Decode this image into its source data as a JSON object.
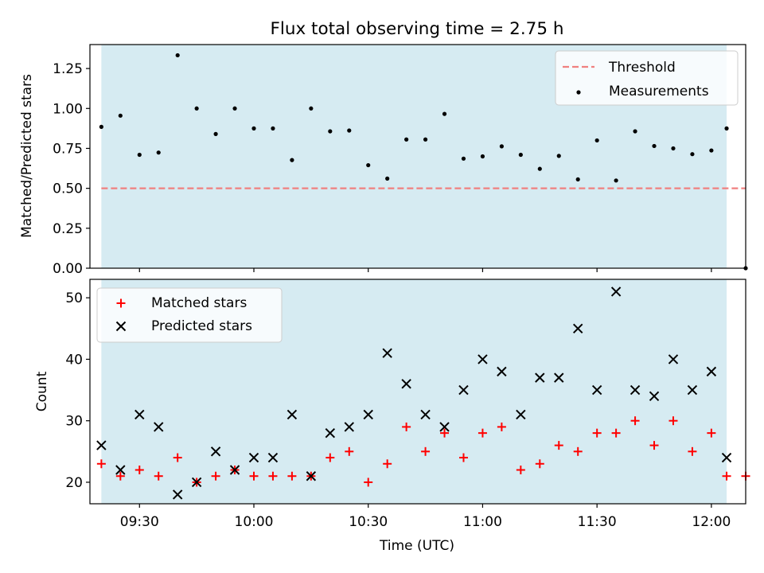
{
  "chart_data": [
    {
      "type": "scatter",
      "title": "Flux total observing time = 2.75 h",
      "xlabel": "",
      "ylabel": "Matched/Predicted stars",
      "xlim": [
        "09:17",
        "12:09"
      ],
      "ylim": [
        0,
        1.4
      ],
      "yticks": [
        0,
        0.25,
        0.5,
        0.75,
        1.0,
        1.25
      ],
      "ytick_labels": [
        "0.00",
        "0.25",
        "0.50",
        "0.75",
        "1.00",
        "1.25"
      ],
      "shaded_interval": [
        "09:20",
        "12:04"
      ],
      "legend_position": "upper right",
      "threshold": {
        "name": "Threshold",
        "value": 0.5,
        "color": "#f08080",
        "style": "dashed",
        "x_range": [
          "09:20",
          "12:09"
        ]
      },
      "series": [
        {
          "name": "Measurements",
          "color": "#000000",
          "marker": "dot",
          "times": [
            "09:20",
            "09:25",
            "09:30",
            "09:35",
            "09:40",
            "09:45",
            "09:50",
            "09:55",
            "10:00",
            "10:05",
            "10:10",
            "10:15",
            "10:20",
            "10:25",
            "10:30",
            "10:35",
            "10:40",
            "10:45",
            "10:50",
            "10:55",
            "11:00",
            "11:05",
            "11:10",
            "11:15",
            "11:20",
            "11:25",
            "11:30",
            "11:35",
            "11:40",
            "11:45",
            "11:50",
            "11:55",
            "12:00",
            "12:04",
            "12:09"
          ],
          "values": [
            0.885,
            0.955,
            0.71,
            0.724,
            1.333,
            1.0,
            0.84,
            1.0,
            0.875,
            0.875,
            0.677,
            1.0,
            0.857,
            0.862,
            0.645,
            0.561,
            0.806,
            0.806,
            0.966,
            0.686,
            0.7,
            0.763,
            0.71,
            0.622,
            0.703,
            0.556,
            0.8,
            0.549,
            0.857,
            0.765,
            0.75,
            0.714,
            0.737,
            0.875,
            0.0
          ]
        }
      ]
    },
    {
      "type": "scatter",
      "title": "",
      "xlabel": "Time (UTC)",
      "ylabel": "Count",
      "xlim": [
        "09:17",
        "12:09"
      ],
      "ylim": [
        16.5,
        53
      ],
      "yticks": [
        20,
        30,
        40,
        50
      ],
      "xticks": [
        "09:30",
        "10:00",
        "10:30",
        "11:00",
        "11:30",
        "12:00"
      ],
      "shaded_interval": [
        "09:20",
        "12:04"
      ],
      "legend_position": "upper left",
      "series": [
        {
          "name": "Matched stars",
          "color": "#ff0000",
          "marker": "plus",
          "times": [
            "09:20",
            "09:25",
            "09:30",
            "09:35",
            "09:40",
            "09:45",
            "09:50",
            "09:55",
            "10:00",
            "10:05",
            "10:10",
            "10:15",
            "10:20",
            "10:25",
            "10:30",
            "10:35",
            "10:40",
            "10:45",
            "10:50",
            "10:55",
            "11:00",
            "11:05",
            "11:10",
            "11:15",
            "11:20",
            "11:25",
            "11:30",
            "11:35",
            "11:40",
            "11:45",
            "11:50",
            "11:55",
            "12:00",
            "12:04",
            "12:09"
          ],
          "values": [
            23,
            21,
            22,
            21,
            24,
            20,
            21,
            22,
            21,
            21,
            21,
            21,
            24,
            25,
            20,
            23,
            29,
            25,
            28,
            24,
            28,
            29,
            22,
            23,
            26,
            25,
            28,
            28,
            30,
            26,
            30,
            25,
            28,
            21,
            21
          ]
        },
        {
          "name": "Predicted stars",
          "color": "#000000",
          "marker": "x",
          "times": [
            "09:20",
            "09:25",
            "09:30",
            "09:35",
            "09:40",
            "09:45",
            "09:50",
            "09:55",
            "10:00",
            "10:05",
            "10:10",
            "10:15",
            "10:20",
            "10:25",
            "10:30",
            "10:35",
            "10:40",
            "10:45",
            "10:50",
            "10:55",
            "11:00",
            "11:05",
            "11:10",
            "11:15",
            "11:20",
            "11:25",
            "11:30",
            "11:35",
            "11:40",
            "11:45",
            "11:50",
            "11:55",
            "12:00",
            "12:04"
          ],
          "values": [
            26,
            22,
            31,
            29,
            18,
            20,
            25,
            22,
            24,
            24,
            31,
            21,
            28,
            29,
            31,
            41,
            36,
            31,
            29,
            35,
            40,
            38,
            31,
            37,
            37,
            45,
            35,
            51,
            35,
            34,
            40,
            35,
            38,
            24
          ]
        }
      ]
    }
  ]
}
